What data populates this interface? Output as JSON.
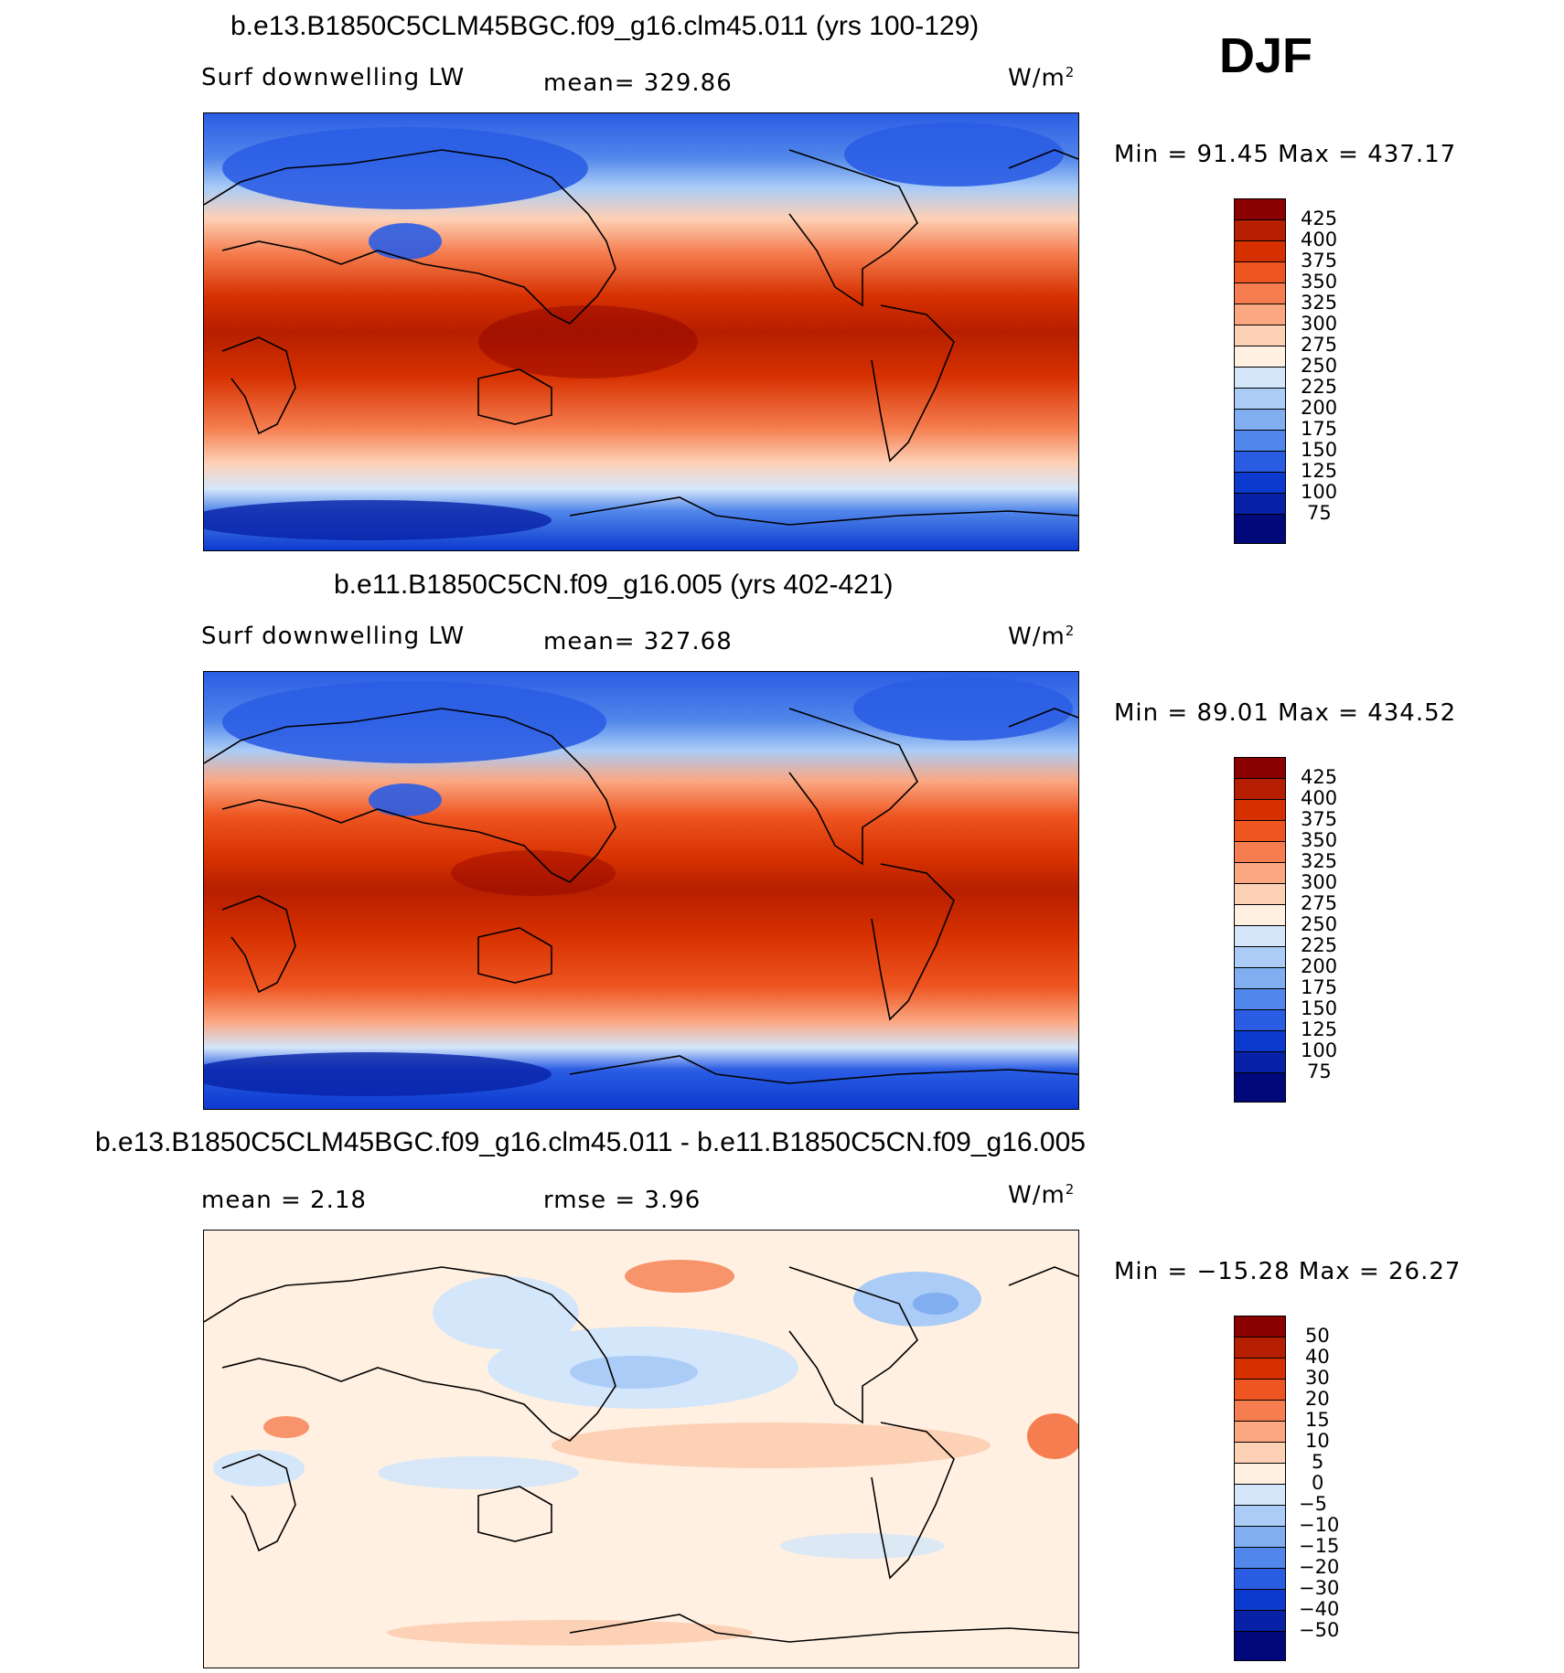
{
  "season": "DJF",
  "panels": [
    {
      "title": "b.e13.B1850C5CLM45BGC.f09_g16.clm45.011 (yrs 100-129)",
      "left_label": "Surf downwelling LW",
      "center_label": "mean= 329.86",
      "right_label": "W/m",
      "right_sup": "2",
      "stats": "Min =  91.45 Max = 437.17"
    },
    {
      "title": "b.e11.B1850C5CN.f09_g16.005 (yrs 402-421)",
      "left_label": "Surf downwelling LW",
      "center_label": "mean= 327.68",
      "right_label": "W/m",
      "right_sup": "2",
      "stats": "Min =  89.01 Max = 434.52"
    },
    {
      "title": "b.e13.B1850C5CLM45BGC.f09_g16.clm45.011 - b.e11.B1850C5CN.f09_g16.005",
      "left_label": "mean =   2.18",
      "center_label": "rmse =   3.96",
      "right_label": "W/m",
      "right_sup": "2",
      "stats": "Min = −15.28 Max =  26.27"
    }
  ],
  "chart_data": [
    {
      "type": "heatmap",
      "title": "b.e13.B1850C5CLM45BGC.f09_g16.clm45.011 (yrs 100-129)",
      "variable": "Surf downwelling LW",
      "units": "W/m2",
      "mean": 329.86,
      "min": 91.45,
      "max": 437.17,
      "colorbar_levels": [
        425,
        400,
        375,
        350,
        325,
        300,
        275,
        250,
        225,
        200,
        175,
        150,
        125,
        100,
        75
      ],
      "colorbar_labels": [
        "425",
        "400",
        "375",
        "350",
        "325",
        "300",
        "275",
        "250",
        "225",
        "200",
        "175",
        "150",
        "125",
        "100",
        "75"
      ],
      "colorbar_colors": [
        "#8b0000",
        "#b51f00",
        "#d63000",
        "#ee5520",
        "#f57d4f",
        "#fba782",
        "#fdd1b6",
        "#fff0e2",
        "#d4e6fa",
        "#aaccf6",
        "#80aef0",
        "#5186ea",
        "#2b5de4",
        "#0c3acf",
        "#0722a6",
        "#00087a"
      ]
    },
    {
      "type": "heatmap",
      "title": "b.e11.B1850C5CN.f09_g16.005 (yrs 402-421)",
      "variable": "Surf downwelling LW",
      "units": "W/m2",
      "mean": 327.68,
      "min": 89.01,
      "max": 434.52,
      "colorbar_levels": [
        425,
        400,
        375,
        350,
        325,
        300,
        275,
        250,
        225,
        200,
        175,
        150,
        125,
        100,
        75
      ],
      "colorbar_labels": [
        "425",
        "400",
        "375",
        "350",
        "325",
        "300",
        "275",
        "250",
        "225",
        "200",
        "175",
        "150",
        "125",
        "100",
        "75"
      ],
      "colorbar_colors": [
        "#8b0000",
        "#b51f00",
        "#d63000",
        "#ee5520",
        "#f57d4f",
        "#fba782",
        "#fdd1b6",
        "#fff0e2",
        "#d4e6fa",
        "#aaccf6",
        "#80aef0",
        "#5186ea",
        "#2b5de4",
        "#0c3acf",
        "#0722a6",
        "#00087a"
      ]
    },
    {
      "type": "heatmap",
      "title": "b.e13.B1850C5CLM45BGC.f09_g16.clm45.011 - b.e11.B1850C5CN.f09_g16.005",
      "units": "W/m2",
      "mean": 2.18,
      "rmse": 3.96,
      "min": -15.28,
      "max": 26.27,
      "colorbar_levels": [
        50,
        40,
        30,
        20,
        15,
        10,
        5,
        0,
        -5,
        -10,
        -15,
        -20,
        -30,
        -40,
        -50
      ],
      "colorbar_labels": [
        "50",
        "40",
        "30",
        "20",
        "15",
        "10",
        "5",
        "0",
        "−5",
        "−10",
        "−15",
        "−20",
        "−30",
        "−40",
        "−50"
      ],
      "colorbar_colors": [
        "#8b0000",
        "#b51f00",
        "#d63000",
        "#ee5520",
        "#f57d4f",
        "#fba782",
        "#fdd1b6",
        "#fff0e2",
        "#d4e6fa",
        "#aaccf6",
        "#80aef0",
        "#5186ea",
        "#2b5de4",
        "#0c3acf",
        "#0722a6",
        "#00087a"
      ]
    }
  ]
}
